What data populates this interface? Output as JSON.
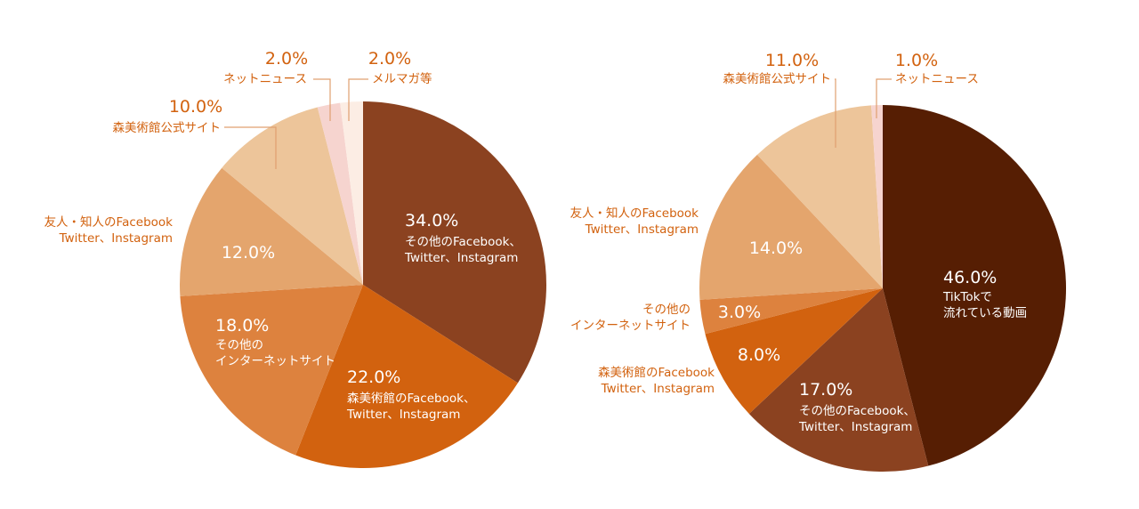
{
  "chart_data": [
    {
      "type": "pie",
      "title": "",
      "slices": [
        {
          "value": 34.0,
          "pct_text": "34.0%",
          "label_lines": [
            "その他のFacebook、",
            "Twitter、Instagram"
          ],
          "label_pos": "inside",
          "color": "#8B4220"
        },
        {
          "value": 22.0,
          "pct_text": "22.0%",
          "label_lines": [
            "森美術館のFacebook、",
            "Twitter、Instagram"
          ],
          "label_pos": "inside",
          "color": "#D2620F"
        },
        {
          "value": 18.0,
          "pct_text": "18.0%",
          "label_lines": [
            "その他の",
            "インターネットサイト"
          ],
          "label_pos": "inside",
          "color": "#DD823E"
        },
        {
          "value": 12.0,
          "pct_text": "12.0%",
          "label_lines": [
            "友人・知人のFacebook",
            "Twitter、Instagram"
          ],
          "label_pos": "split",
          "color": "#E4A56D"
        },
        {
          "value": 10.0,
          "pct_text": "10.0%",
          "label_lines": [
            "森美術館公式サイト"
          ],
          "label_pos": "outside",
          "color": "#EDC59A"
        },
        {
          "value": 2.0,
          "pct_text": "2.0%",
          "label_lines": [
            "ネットニュース"
          ],
          "label_pos": "outside",
          "color": "#F6D4CF"
        },
        {
          "value": 2.0,
          "pct_text": "2.0%",
          "label_lines": [
            "メルマガ等"
          ],
          "label_pos": "outside",
          "color": "#FCEDE4"
        }
      ]
    },
    {
      "type": "pie",
      "title": "",
      "slices": [
        {
          "value": 46.0,
          "pct_text": "46.0%",
          "label_lines": [
            "TikTokで",
            "流れている動画"
          ],
          "label_pos": "inside",
          "color": "#561E03"
        },
        {
          "value": 17.0,
          "pct_text": "17.0%",
          "label_lines": [
            "その他のFacebook、",
            "Twitter、Instagram"
          ],
          "label_pos": "inside",
          "color": "#8B4220"
        },
        {
          "value": 8.0,
          "pct_text": "8.0%",
          "label_lines": [
            "森美術館のFacebook",
            "Twitter、Instagram"
          ],
          "label_pos": "split",
          "color": "#D2620F"
        },
        {
          "value": 3.0,
          "pct_text": "3.0%",
          "label_lines": [
            "その他の",
            "インターネットサイト"
          ],
          "label_pos": "split",
          "color": "#DD823E"
        },
        {
          "value": 14.0,
          "pct_text": "14.0%",
          "label_lines": [
            "友人・知人のFacebook",
            "Twitter、Instagram"
          ],
          "label_pos": "split",
          "color": "#E4A56D"
        },
        {
          "value": 11.0,
          "pct_text": "11.0%",
          "label_lines": [
            "森美術館公式サイト"
          ],
          "label_pos": "outside",
          "color": "#EDC59A"
        },
        {
          "value": 1.0,
          "pct_text": "1.0%",
          "label_lines": [
            "ネットニュース"
          ],
          "label_pos": "outside",
          "color": "#F6D4CF"
        }
      ]
    }
  ],
  "colors": {
    "label_text": "#D2620F",
    "inside_text": "#ffffff",
    "leader_line": "#E0A070"
  }
}
